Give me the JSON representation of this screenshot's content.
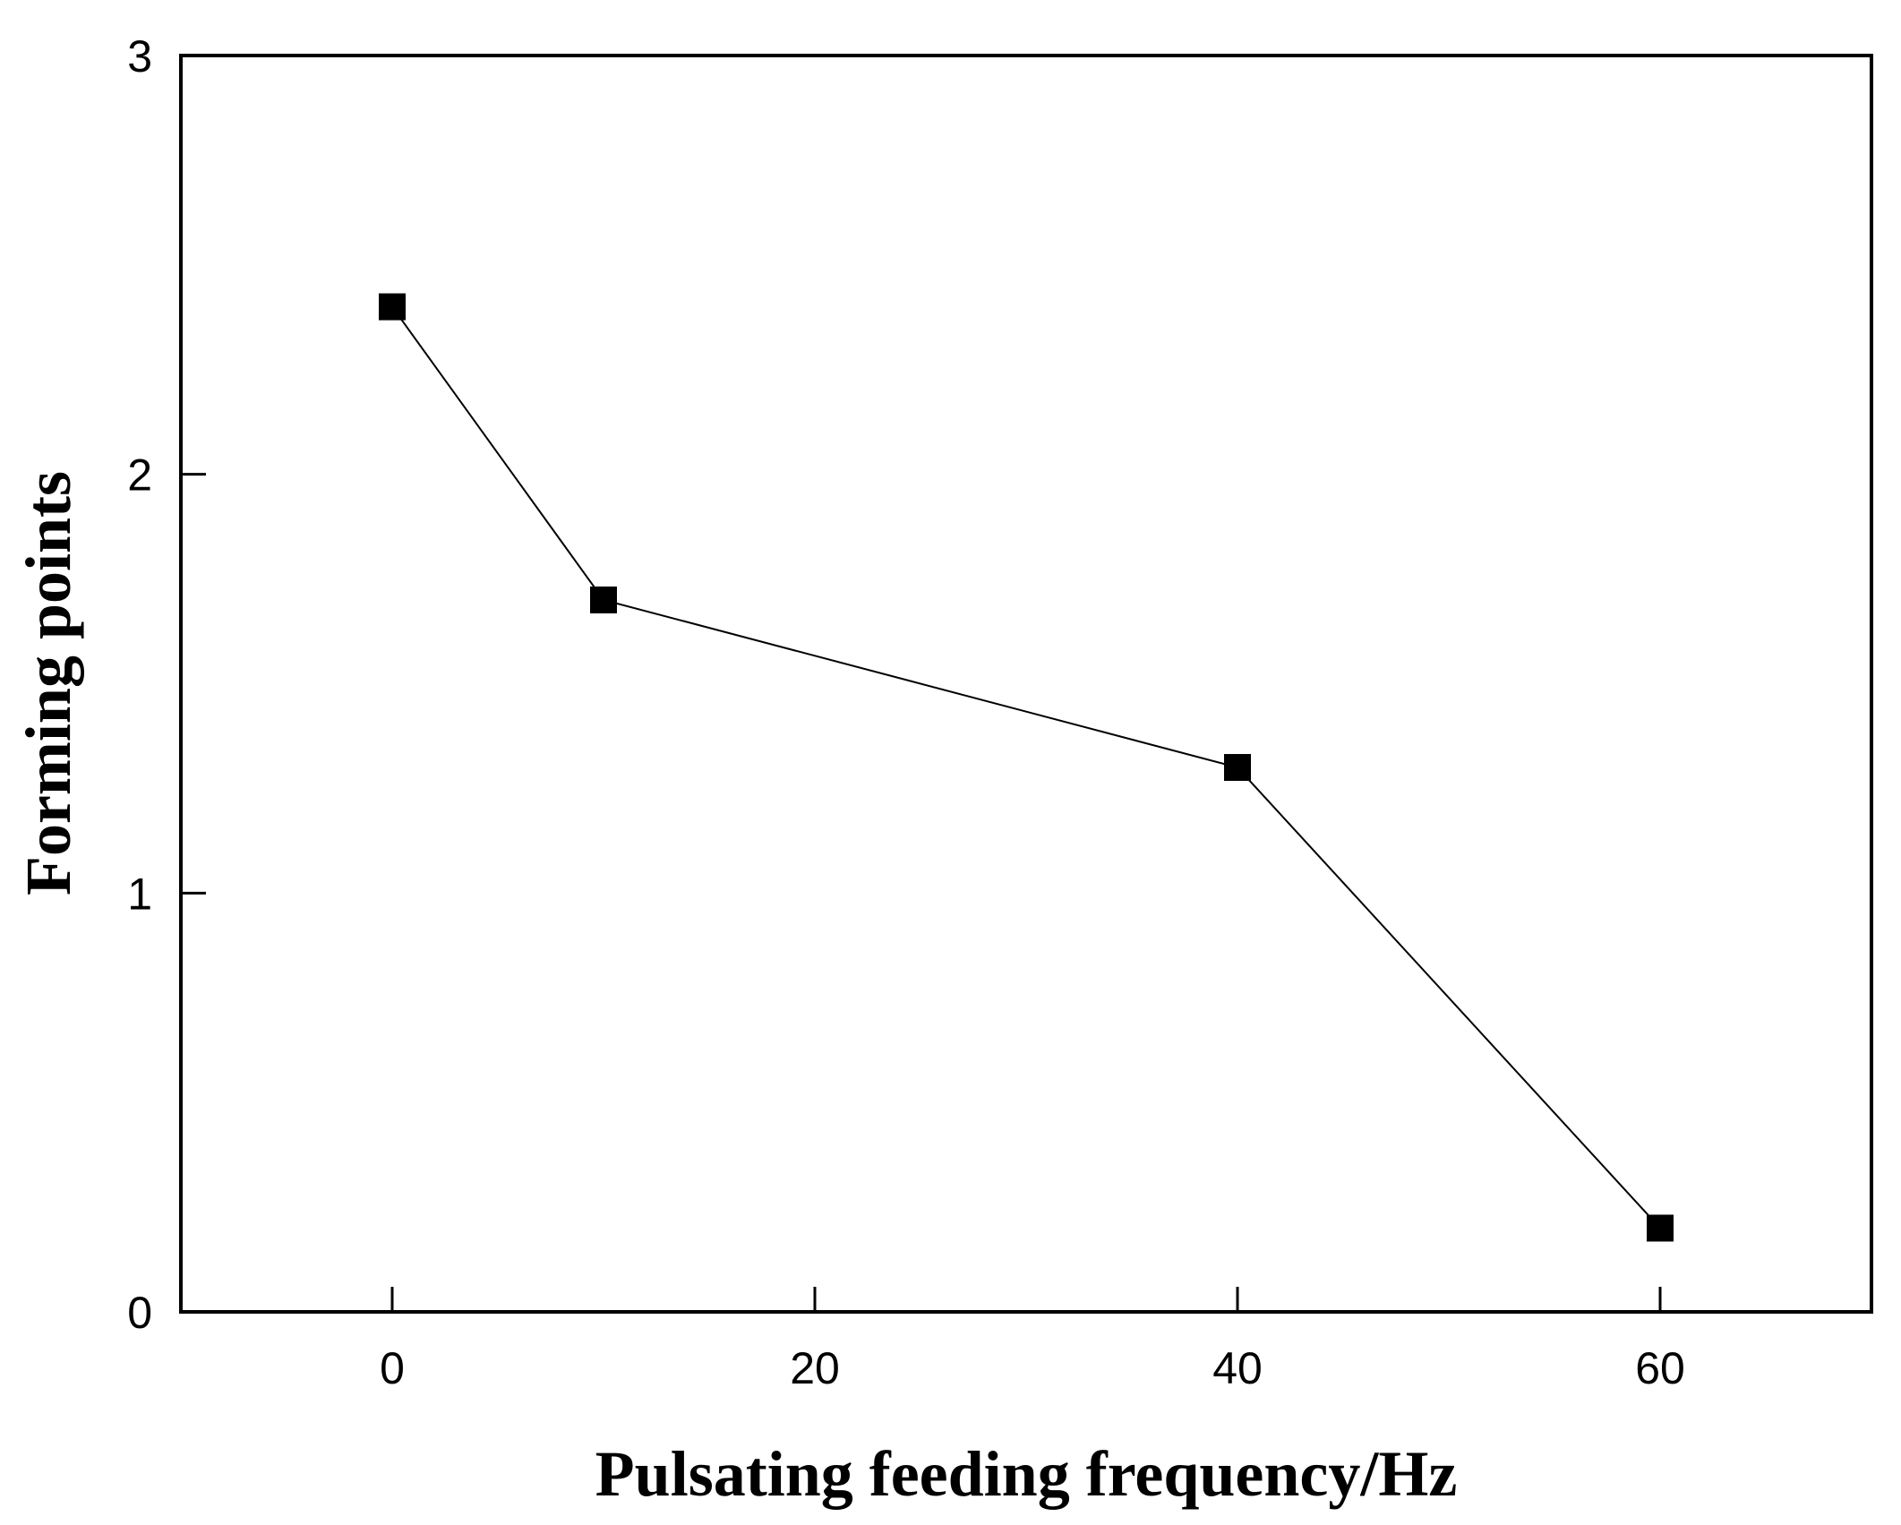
{
  "chart_data": {
    "type": "line",
    "title": "",
    "xlabel": "Pulsating feeding frequency/Hz",
    "ylabel": "Forming points",
    "xlim": [
      -10,
      70
    ],
    "ylim": [
      0,
      3
    ],
    "x_ticks": [
      0,
      20,
      40,
      60
    ],
    "y_ticks": [
      0,
      1,
      2,
      3
    ],
    "x_tick_labels": [
      "0",
      "20",
      "40",
      "60"
    ],
    "y_tick_labels": [
      "0",
      "1",
      "2",
      "3"
    ],
    "grid": false,
    "legend": "none",
    "marker": "square",
    "series": [
      {
        "name": "Forming points",
        "x": [
          0,
          10,
          40,
          60
        ],
        "y": [
          2.4,
          1.7,
          1.3,
          0.2
        ]
      }
    ]
  },
  "colors": {
    "line": "#000000",
    "marker": "#000000",
    "axis": "#000000"
  }
}
